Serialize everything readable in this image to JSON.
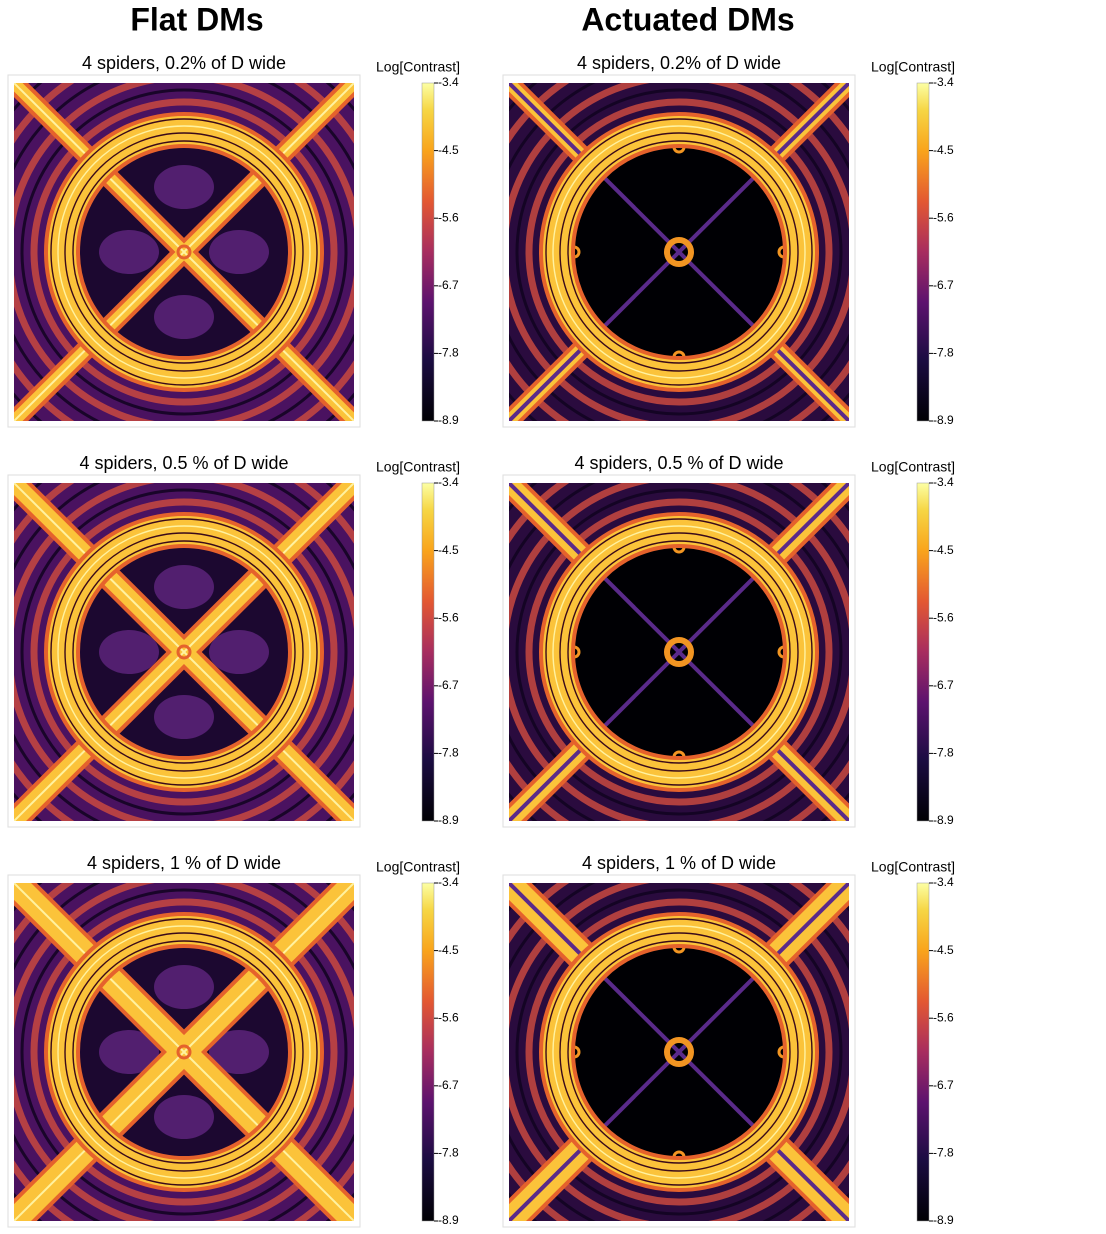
{
  "column_titles": [
    "Flat DMs",
    "Actuated DMs"
  ],
  "panels": [
    {
      "title": "4 spiders, 0.2% of D wide",
      "colorbar": {
        "label": "Log[Contrast]",
        "lim": [
          -8.9,
          -3.4
        ],
        "ticks": [
          -3.4,
          -4.5,
          -5.6,
          -6.7,
          -7.8,
          -8.9
        ]
      }
    },
    {
      "title": "4 spiders, 0.2% of D wide",
      "colorbar": {
        "label": "Log[Contrast]",
        "lim": [
          -8.9,
          -3.4
        ],
        "ticks": [
          -3.4,
          -4.5,
          -5.6,
          -6.7,
          -7.8,
          -8.9
        ]
      }
    },
    {
      "title": "4 spiders, 0.5 % of D wide",
      "colorbar": {
        "label": "Log[Contrast]",
        "lim": [
          -8.9,
          -3.4
        ],
        "ticks": [
          -3.4,
          -4.5,
          -5.6,
          -6.7,
          -7.8,
          -8.9
        ]
      }
    },
    {
      "title": "4 spiders, 0.5 % of D wide",
      "colorbar": {
        "label": "Log[Contrast]",
        "lim": [
          -8.9,
          -3.4
        ],
        "ticks": [
          -3.4,
          -4.5,
          -5.6,
          -6.7,
          -7.8,
          -8.9
        ]
      }
    },
    {
      "title": "4 spiders, 1 % of D wide",
      "colorbar": {
        "label": "Log[Contrast]",
        "lim": [
          -8.9,
          -3.4
        ],
        "ticks": [
          -3.4,
          -4.5,
          -5.6,
          -6.7,
          -7.8,
          -8.9
        ]
      }
    },
    {
      "title": "4  spiders, 1 % of D wide",
      "colorbar": {
        "label": "Log[Contrast]",
        "lim": [
          -8.9,
          -3.4
        ],
        "ticks": [
          -3.4,
          -4.5,
          -5.6,
          -6.7,
          -7.8,
          -8.9
        ]
      }
    }
  ]
}
